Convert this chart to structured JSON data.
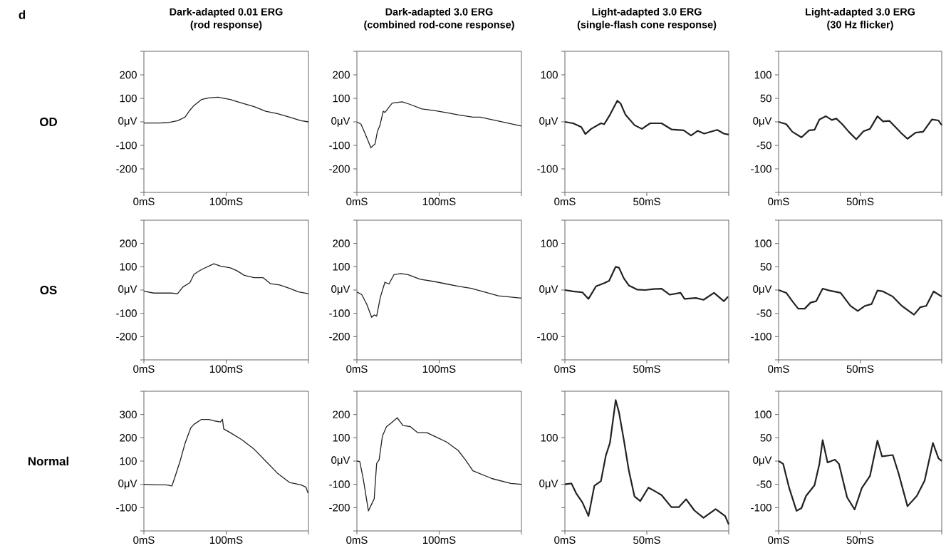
{
  "chart_data": [
    {
      "type": "line",
      "title": "Dark-adapted 0.01 ERG",
      "subtitle": "(rod response)",
      "ylabel": "OD",
      "annotations": [
        "d"
      ],
      "color": "#222222",
      "x": [
        0,
        18,
        30,
        41,
        50,
        56,
        61,
        70,
        79,
        90,
        105,
        119,
        134,
        148,
        162,
        177,
        191,
        200
      ],
      "values": [
        -5,
        -5,
        -3,
        5,
        20,
        50,
        70,
        95,
        102,
        105,
        95,
        80,
        65,
        45,
        35,
        20,
        5,
        0
      ],
      "xlim": [
        0,
        200
      ],
      "xticks": [
        {
          "value": 0,
          "label": "0mS"
        },
        {
          "value": 100,
          "label": "100mS"
        },
        {
          "value": 200,
          "label": null
        }
      ],
      "ylim": [
        -300,
        300
      ],
      "yticks": [
        {
          "value": -300,
          "label": null
        },
        -200,
        -100,
        {
          "value": 0,
          "label": "0μV"
        },
        100,
        200,
        {
          "value": 300,
          "label": null
        }
      ]
    },
    {
      "type": "line",
      "title": "Dark-adapted 3.0 ERG",
      "subtitle": "(combined rod-cone response)",
      "color": "#222222",
      "x": [
        0,
        5,
        10,
        17,
        20,
        22,
        25,
        28,
        32,
        34,
        43,
        55,
        64,
        79,
        94,
        108,
        123,
        141,
        150,
        180,
        200
      ],
      "values": [
        0,
        -10,
        -50,
        -110,
        -100,
        -95,
        -40,
        -15,
        45,
        40,
        80,
        85,
        75,
        55,
        48,
        40,
        30,
        20,
        20,
        -3,
        -18
      ],
      "xlim": [
        0,
        200
      ],
      "xticks": [
        {
          "value": 0,
          "label": "0mS"
        },
        {
          "value": 100,
          "label": "100mS"
        },
        {
          "value": 200,
          "label": null
        }
      ],
      "ylim": [
        -300,
        300
      ],
      "yticks": [
        {
          "value": -300,
          "label": null
        },
        -200,
        -100,
        {
          "value": 0,
          "label": "0μV"
        },
        100,
        200,
        {
          "value": 300,
          "label": null
        }
      ]
    },
    {
      "type": "line",
      "title": "Light-adapted 3.0 ERG",
      "subtitle": "(single-flash cone response)",
      "color": "#222222",
      "x": [
        0,
        5,
        10,
        12.5,
        16,
        22,
        24,
        27.5,
        32,
        34,
        37,
        42.5,
        47,
        52,
        59,
        65,
        72.5,
        77,
        81,
        85,
        93,
        97,
        100
      ],
      "values": [
        0,
        -3,
        -11,
        -26,
        -15,
        -3,
        -5,
        15,
        45,
        39,
        15,
        -7,
        -15,
        -3,
        -3,
        -16,
        -18,
        -29,
        -19,
        -25,
        -17,
        -25,
        -27
      ],
      "xlim": [
        0,
        100
      ],
      "xticks": [
        {
          "value": 0,
          "label": "0mS"
        },
        {
          "value": 50,
          "label": "50mS"
        },
        {
          "value": 100,
          "label": null
        }
      ],
      "ylim": [
        -150,
        150
      ],
      "yticks": [
        {
          "value": -150,
          "label": null
        },
        -100,
        {
          "value": -50,
          "label": null
        },
        {
          "value": 0,
          "label": "0μV"
        },
        {
          "value": 50,
          "label": null
        },
        100,
        {
          "value": 150,
          "label": null
        }
      ]
    },
    {
      "type": "line",
      "title": "Light-adapted 3.0 ERG",
      "subtitle": "(30 Hz flicker)",
      "color": "#222222",
      "x": [
        0,
        4.7,
        8.4,
        14,
        18.7,
        22,
        25,
        29,
        32.6,
        35.4,
        39,
        43,
        47.6,
        52,
        56,
        60.6,
        64,
        68,
        75.5,
        79,
        84,
        88.6,
        94,
        98,
        100
      ],
      "values": [
        0,
        -5,
        -21,
        -33,
        -18,
        -17,
        5,
        12,
        4,
        7,
        -5,
        -21,
        -37,
        -20,
        -15,
        12,
        1,
        2,
        -25,
        -36,
        -23,
        -21,
        5,
        3,
        -7
      ],
      "xlim": [
        0,
        100
      ],
      "xticks": [
        {
          "value": 0,
          "label": "0mS"
        },
        {
          "value": 50,
          "label": "50mS"
        },
        {
          "value": 100,
          "label": null
        }
      ],
      "ylim": [
        -150,
        150
      ],
      "yticks": [
        {
          "value": -150,
          "label": null
        },
        -100,
        -50,
        {
          "value": 0,
          "label": "0μV"
        },
        50,
        100,
        {
          "value": 150,
          "label": null
        }
      ]
    },
    {
      "type": "line",
      "ylabel": "OS",
      "color": "#222222",
      "x": [
        0,
        12,
        21,
        33,
        41,
        47,
        56,
        61,
        70,
        76,
        85,
        93,
        105,
        113,
        122,
        134,
        145,
        154,
        165,
        177,
        188,
        200
      ],
      "values": [
        -5,
        -13,
        -13,
        -13,
        -16,
        12,
        32,
        68,
        88,
        98,
        113,
        103,
        95,
        83,
        63,
        53,
        53,
        27,
        22,
        7,
        -8,
        -16
      ],
      "xlim": [
        0,
        200
      ],
      "xticks": [
        {
          "value": 0,
          "label": "0mS"
        },
        {
          "value": 100,
          "label": "100mS"
        },
        {
          "value": 200,
          "label": null
        }
      ],
      "ylim": [
        -300,
        300
      ],
      "yticks": [
        {
          "value": -300,
          "label": null
        },
        -200,
        -100,
        {
          "value": 0,
          "label": "0μV"
        },
        100,
        200,
        {
          "value": 300,
          "label": null
        }
      ]
    },
    {
      "type": "line",
      "color": "#222222",
      "x": [
        0,
        6,
        12,
        18,
        21,
        24,
        28.5,
        34,
        39,
        45,
        53.5,
        62,
        77,
        95,
        109,
        124,
        139,
        172,
        200
      ],
      "values": [
        -8,
        -20,
        -61,
        -117,
        -107,
        -112,
        -31,
        33,
        26,
        66,
        71,
        66,
        46,
        36,
        26,
        16,
        7,
        -25,
        -35
      ],
      "xlim": [
        0,
        200
      ],
      "xticks": [
        {
          "value": 0,
          "label": "0mS"
        },
        {
          "value": 100,
          "label": "100mS"
        },
        {
          "value": 200,
          "label": null
        }
      ],
      "ylim": [
        -300,
        300
      ],
      "yticks": [
        {
          "value": -300,
          "label": null
        },
        -200,
        -100,
        {
          "value": 0,
          "label": "0μV"
        },
        100,
        200,
        {
          "value": 300,
          "label": null
        }
      ]
    },
    {
      "type": "line",
      "color": "#222222",
      "x": [
        0,
        5,
        10.7,
        14.4,
        19,
        24,
        27,
        31,
        33,
        36,
        39,
        44,
        49,
        54,
        59,
        64,
        70.6,
        73,
        80,
        84.6,
        91,
        97,
        99.6
      ],
      "values": [
        0,
        -3,
        -5,
        -19,
        8,
        15,
        20,
        50,
        48,
        25,
        10,
        1,
        0,
        2,
        3,
        -10,
        -6,
        -19,
        -17,
        -21,
        -6,
        -24,
        -14
      ],
      "xlim": [
        0,
        100
      ],
      "xticks": [
        {
          "value": 0,
          "label": "0mS"
        },
        {
          "value": 50,
          "label": "50mS"
        },
        {
          "value": 100,
          "label": null
        }
      ],
      "ylim": [
        -150,
        150
      ],
      "yticks": [
        {
          "value": -150,
          "label": null
        },
        -100,
        {
          "value": -50,
          "label": null
        },
        {
          "value": 0,
          "label": "0μV"
        },
        {
          "value": 50,
          "label": null
        },
        100,
        {
          "value": 150,
          "label": null
        }
      ]
    },
    {
      "type": "line",
      "color": "#222222",
      "x": [
        0,
        4.7,
        8.4,
        12,
        16,
        19.6,
        23,
        27,
        31,
        38,
        44,
        48.5,
        53,
        57,
        60.6,
        64,
        70,
        75.5,
        83,
        86.8,
        90.5,
        95,
        100
      ],
      "values": [
        0,
        -6,
        -24,
        -40,
        -40,
        -27,
        -24,
        3,
        -1,
        -6,
        -34,
        -45,
        -34,
        -30,
        -1,
        -3,
        -14,
        -34,
        -53,
        -37,
        -34,
        -3,
        -14
      ],
      "xlim": [
        0,
        100
      ],
      "xticks": [
        {
          "value": 0,
          "label": "0mS"
        },
        {
          "value": 50,
          "label": "50mS"
        },
        {
          "value": 100,
          "label": null
        }
      ],
      "ylim": [
        -150,
        150
      ],
      "yticks": [
        {
          "value": -150,
          "label": null
        },
        -100,
        -50,
        {
          "value": 0,
          "label": "0μV"
        },
        50,
        100,
        {
          "value": 150,
          "label": null
        }
      ]
    },
    {
      "type": "line",
      "ylabel": "Normal",
      "color": "#222222",
      "x": [
        0,
        15,
        27,
        34,
        38,
        44,
        50,
        57,
        61,
        70,
        79,
        85,
        93,
        95.5,
        97,
        105,
        119,
        134,
        148,
        162,
        177,
        191,
        197,
        199.5
      ],
      "values": [
        0,
        -2,
        -2,
        -7,
        34,
        100,
        176,
        243,
        258,
        279,
        279,
        273,
        268,
        279,
        238,
        222,
        192,
        151,
        100,
        49,
        8,
        -2,
        -12,
        -38
      ],
      "xlim": [
        0,
        200
      ],
      "xticks": [
        {
          "value": 0,
          "label": "0mS"
        },
        {
          "value": 100,
          "label": "100mS"
        },
        {
          "value": 200,
          "label": null
        }
      ],
      "ylim": [
        -200,
        400
      ],
      "yticks": [
        {
          "value": -200,
          "label": null
        },
        -100,
        {
          "value": 0,
          "label": "0μV"
        },
        100,
        200,
        300,
        {
          "value": 400,
          "label": null
        }
      ]
    },
    {
      "type": "line",
      "color": "#222222",
      "x": [
        0,
        3.5,
        8,
        14,
        18,
        21,
        24,
        27,
        31,
        36,
        41.5,
        49,
        56,
        65,
        74,
        85,
        97,
        109,
        123,
        132,
        141,
        164,
        187,
        200
      ],
      "values": [
        0,
        -2,
        -82,
        -214,
        -184,
        -163,
        -10,
        5,
        107,
        148,
        163,
        186,
        153,
        148,
        122,
        122,
        102,
        82,
        46,
        5,
        -42,
        -75,
        -96,
        -100
      ],
      "xlim": [
        0,
        200
      ],
      "xticks": [
        {
          "value": 0,
          "label": "0mS"
        },
        {
          "value": 100,
          "label": "100mS"
        },
        {
          "value": 200,
          "label": null
        }
      ],
      "ylim": [
        -300,
        300
      ],
      "yticks": [
        {
          "value": -300,
          "label": null
        },
        -200,
        -100,
        {
          "value": 0,
          "label": "0μV"
        },
        100,
        200,
        {
          "value": 300,
          "label": null
        }
      ]
    },
    {
      "type": "line",
      "color": "#222222",
      "x": [
        0,
        4,
        7,
        10.7,
        14.4,
        18,
        22,
        25,
        27.5,
        31,
        33,
        36,
        39,
        42.5,
        46,
        51,
        55.6,
        59,
        65,
        69.5,
        74,
        79,
        84.6,
        92,
        97.8,
        100
      ],
      "values": [
        0,
        2,
        -20,
        -39,
        -68,
        -3,
        7,
        62,
        89,
        181,
        155,
        95,
        30,
        -26,
        -36,
        -7,
        -16,
        -23,
        -49,
        -49,
        -32,
        -56,
        -72,
        -53,
        -68,
        -86
      ],
      "xlim": [
        0,
        100
      ],
      "xticks": [
        {
          "value": 0,
          "label": "0mS"
        },
        {
          "value": 50,
          "label": "50mS"
        },
        {
          "value": 100,
          "label": null
        }
      ],
      "ylim": [
        -100,
        200
      ],
      "yticks": [
        {
          "value": -100,
          "label": null
        },
        {
          "value": -50,
          "label": null
        },
        {
          "value": 0,
          "label": "0μV"
        },
        {
          "value": 50,
          "label": null
        },
        100,
        {
          "value": 150,
          "label": null
        },
        {
          "value": 200,
          "label": null
        }
      ]
    },
    {
      "type": "line",
      "color": "#222222",
      "x": [
        0,
        2.8,
        6.5,
        11,
        14,
        16.8,
        22,
        25,
        27,
        30,
        34.5,
        37,
        42,
        46.6,
        51,
        56,
        60.6,
        63.4,
        70,
        73.5,
        79,
        84.7,
        89.5,
        94.6,
        98,
        100
      ],
      "values": [
        0,
        -6,
        -58,
        -107,
        -101,
        -75,
        -52,
        -6,
        45,
        -3,
        3,
        -6,
        -78,
        -104,
        -58,
        -32,
        44,
        10,
        13,
        -26,
        -97,
        -75,
        -42,
        39,
        6,
        0
      ],
      "xlim": [
        0,
        100
      ],
      "xticks": [
        {
          "value": 0,
          "label": "0mS"
        },
        {
          "value": 50,
          "label": "50mS"
        },
        {
          "value": 100,
          "label": null
        }
      ],
      "ylim": [
        -150,
        150
      ],
      "yticks": [
        {
          "value": -150,
          "label": null
        },
        -100,
        -50,
        {
          "value": 0,
          "label": "0μV"
        },
        50,
        100,
        {
          "value": 150,
          "label": null
        }
      ]
    }
  ]
}
